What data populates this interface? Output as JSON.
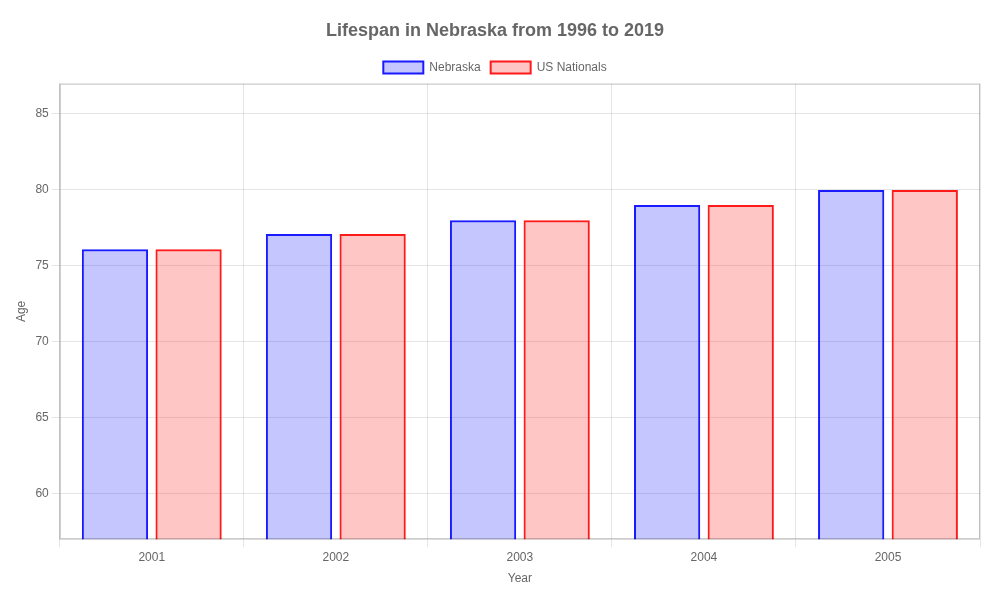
{
  "chart_data": {
    "type": "bar",
    "title": "Lifespan in Nebraska from 1996 to 2019",
    "xlabel": "Year",
    "ylabel": "Age",
    "categories": [
      "2001",
      "2002",
      "2003",
      "2004",
      "2005"
    ],
    "series": [
      {
        "name": "Nebraska",
        "color": "#1a1aff",
        "values": [
          76.1,
          77.1,
          78.0,
          79.0,
          80.0
        ]
      },
      {
        "name": "US Nationals",
        "color": "#ff1a1a",
        "values": [
          76.1,
          77.1,
          78.0,
          79.0,
          80.0
        ]
      }
    ],
    "ylim": [
      57,
      87
    ],
    "yticks": [
      60,
      65,
      70,
      75,
      80,
      85
    ],
    "grid": true,
    "legend": "top"
  }
}
